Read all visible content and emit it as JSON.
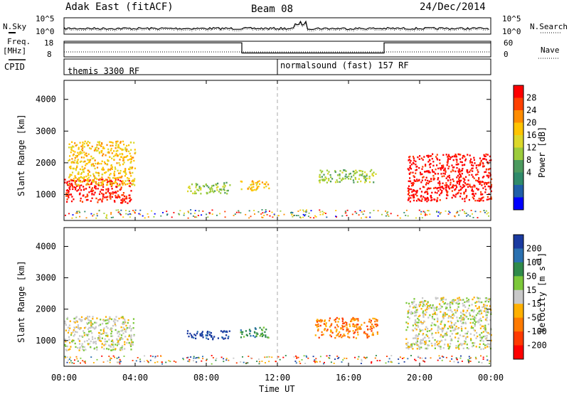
{
  "header": {
    "radar": "Adak East (fitACF)",
    "beam": "Beam 08",
    "date": "24/Dec/2014"
  },
  "noise_panel": {
    "left_label": "N.Sky",
    "right_label": "N.Search",
    "left_ticks": [
      "10^5",
      "10^0"
    ],
    "right_ticks": [
      "10^5",
      "10^0"
    ]
  },
  "freq_panel": {
    "left_label_1": "Freq.",
    "left_label_2": "[MHz]",
    "right_label": "Nave",
    "left_ticks": [
      "18",
      "8"
    ],
    "right_ticks": [
      "60",
      "0"
    ],
    "freq_segments": [
      {
        "start": 0,
        "end": 10,
        "value": 17
      },
      {
        "start": 10,
        "end": 18,
        "value": 10.5
      },
      {
        "start": 18,
        "end": 24,
        "value": 17
      }
    ]
  },
  "cpid_panel": {
    "label": "CPID",
    "programs": [
      {
        "start": 0,
        "end": 12,
        "name": "themis 3300 RF"
      },
      {
        "start": 12,
        "end": 24,
        "name": "normalsound (fast) 157 RF"
      }
    ]
  },
  "colorbars": {
    "power": {
      "label": "Power [dB]",
      "ticks": [
        "28",
        "24",
        "20",
        "16",
        "12",
        "8",
        "4"
      ],
      "colors": [
        "#ff0000",
        "#ff4000",
        "#ff8c00",
        "#ffc400",
        "#dcd82a",
        "#9ccc3c",
        "#4c9a5e",
        "#2f8a6a",
        "#1f5fa8",
        "#0000ff"
      ]
    },
    "velocity": {
      "label": "Velocity [m s",
      "label_sup": "-1",
      "label_end": "]",
      "ticks": [
        "200",
        "100",
        "50",
        "15",
        "-15",
        "-50",
        "-100",
        "-200"
      ],
      "colors": [
        "#1a3aa0",
        "#2a70b0",
        "#2f8a4a",
        "#7cc83a",
        "#c8c8c8",
        "#ffb000",
        "#ff7a00",
        "#ff3a00",
        "#ff0000"
      ]
    }
  },
  "chart_data": {
    "type": "heatmap",
    "xlabel": "Time UT",
    "ylabel": "Slant Range [km]",
    "x_ticks": [
      "00:00",
      "04:00",
      "08:00",
      "12:00",
      "16:00",
      "20:00",
      "00:00"
    ],
    "y_ticks": [
      "1000",
      "2000",
      "3000",
      "4000"
    ],
    "xlim": [
      0,
      24
    ],
    "ylim": [
      180,
      4600
    ],
    "grid": false,
    "panels": [
      {
        "name": "Power",
        "scatter_regions": [
          {
            "t0": 0.0,
            "t1": 3.8,
            "r0": 750,
            "r1": 1500,
            "value": "28"
          },
          {
            "t0": 0.2,
            "t1": 4.0,
            "r0": 1300,
            "r1": 2700,
            "value": "16"
          },
          {
            "t0": 6.9,
            "t1": 9.3,
            "r0": 1050,
            "r1": 1400,
            "value": "8"
          },
          {
            "t0": 9.9,
            "t1": 11.5,
            "r0": 1150,
            "r1": 1450,
            "value": "16"
          },
          {
            "t0": 14.3,
            "t1": 17.5,
            "r0": 1400,
            "r1": 1800,
            "value": "8"
          },
          {
            "t0": 19.3,
            "t1": 24.0,
            "r0": 800,
            "r1": 2300,
            "value": "28"
          }
        ]
      },
      {
        "name": "Velocity",
        "scatter_regions": [
          {
            "t0": 0.0,
            "t1": 3.9,
            "r0": 700,
            "r1": 1800,
            "value": "-15"
          },
          {
            "t0": 6.9,
            "t1": 9.3,
            "r0": 1050,
            "r1": 1350,
            "value": "200"
          },
          {
            "t0": 9.9,
            "t1": 11.5,
            "r0": 1100,
            "r1": 1450,
            "value": "50"
          },
          {
            "t0": 14.1,
            "t1": 17.6,
            "r0": 1100,
            "r1": 1750,
            "value": "-100"
          },
          {
            "t0": 19.2,
            "t1": 24.0,
            "r0": 750,
            "r1": 2400,
            "value": "-15"
          }
        ]
      }
    ]
  }
}
